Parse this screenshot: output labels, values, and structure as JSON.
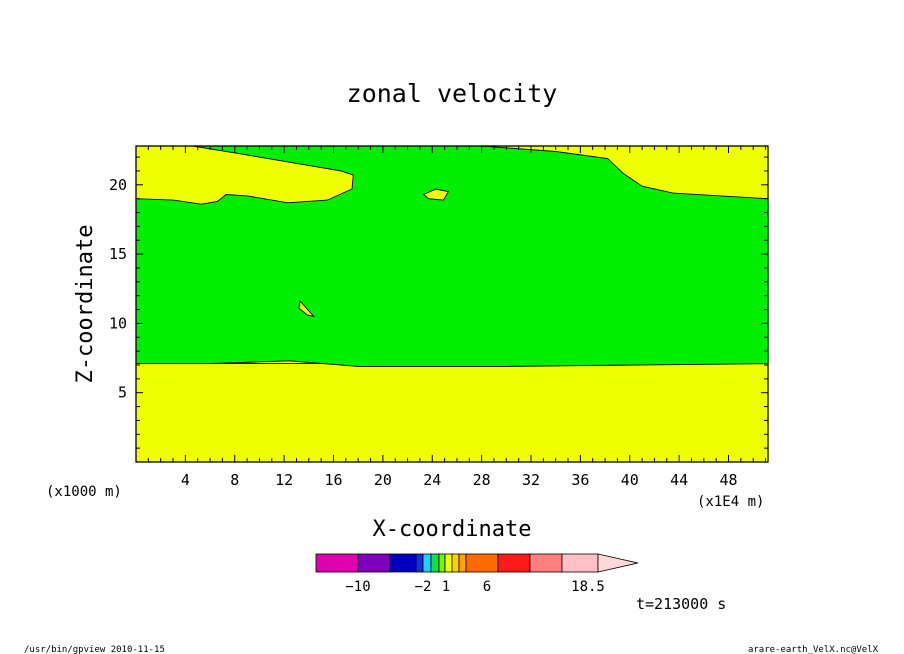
{
  "chart_data": {
    "type": "contour",
    "title": "zonal velocity",
    "xlabel": "X-coordinate",
    "ylabel": "Z-coordinate",
    "x_axis_note_left": "(x1000 m)",
    "x_axis_note_right": "(x1E4 m)",
    "xlim": [
      0,
      51.2
    ],
    "ylim": [
      0,
      22.8
    ],
    "x_ticks": [
      4,
      8,
      12,
      16,
      20,
      24,
      28,
      32,
      36,
      40,
      44,
      48
    ],
    "y_ticks": [
      5,
      10,
      15,
      20
    ],
    "time_label": "t=213000 s",
    "colorbar": {
      "colors": [
        "#e000b0",
        "#8000c0",
        "#0000c0",
        "#1030e0",
        "#20d0f0",
        "#10e040",
        "#80f000",
        "#f0ff00",
        "#ffd000",
        "#ffa000",
        "#ff6a00",
        "#ff1a1a",
        "#ff8080",
        "#ffc0c8",
        "#ffd8d8"
      ],
      "labels": [
        {
          "value": -10,
          "text": "−10"
        },
        {
          "value": -2,
          "text": "−2"
        },
        {
          "value": 1,
          "text": "1"
        },
        {
          "value": 6,
          "text": "6"
        },
        {
          "value": 18.5,
          "text": "18.5"
        }
      ]
    },
    "fill_colors": {
      "background": "#f0ff00",
      "band": "#00ee00"
    },
    "contour_regions": [
      {
        "name": "lower-yellow-layer",
        "color": "#f0ff00",
        "points": [
          [
            0,
            0
          ],
          [
            51.2,
            0
          ],
          [
            51.2,
            7.1
          ],
          [
            0,
            7.1
          ]
        ]
      },
      {
        "name": "green-band",
        "color": "#00ee00",
        "points": [
          [
            0,
            7.1
          ],
          [
            6,
            7.1
          ],
          [
            12.4,
            7.3
          ],
          [
            18,
            6.9
          ],
          [
            30,
            6.9
          ],
          [
            51.2,
            7.1
          ],
          [
            51.2,
            19
          ],
          [
            43.5,
            19.4
          ],
          [
            41,
            19.9
          ],
          [
            39.5,
            20.8
          ],
          [
            38.2,
            21.9
          ],
          [
            34,
            22.4
          ],
          [
            28,
            22.8
          ],
          [
            4.6,
            22.8
          ],
          [
            8,
            22.3
          ],
          [
            16.6,
            21
          ],
          [
            17.6,
            20.7
          ],
          [
            17.5,
            19.7
          ],
          [
            15.5,
            18.9
          ],
          [
            12.3,
            18.7
          ],
          [
            9,
            19.2
          ],
          [
            7.3,
            19.3
          ],
          [
            6.6,
            18.8
          ],
          [
            5.3,
            18.6
          ],
          [
            3,
            18.9
          ],
          [
            0,
            19
          ]
        ]
      },
      {
        "name": "yellow-island-upper",
        "color": "#f0ff00",
        "points": [
          [
            23.3,
            19.3
          ],
          [
            24.3,
            19.7
          ],
          [
            25.3,
            19.5
          ],
          [
            24.9,
            18.9
          ],
          [
            23.7,
            19
          ]
        ]
      },
      {
        "name": "yellow-island-mid",
        "color": "#f0ff00",
        "points": [
          [
            13.3,
            11.6
          ],
          [
            14.4,
            10.5
          ],
          [
            13.9,
            10.6
          ],
          [
            13.2,
            11.1
          ]
        ]
      }
    ]
  },
  "footer": {
    "left": "/usr/bin/gpview  2010-11-15",
    "right": "arare-earth_VelX.nc@VelX"
  }
}
